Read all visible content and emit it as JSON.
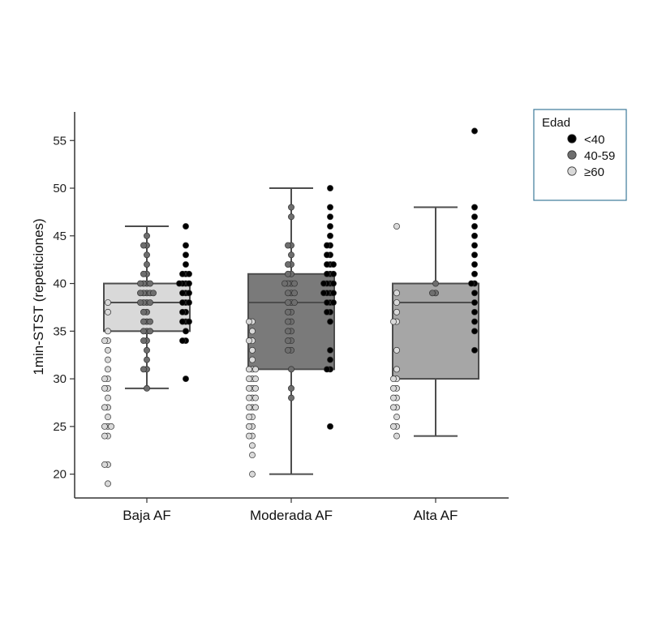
{
  "chart_data": {
    "type": "box",
    "title": "",
    "xlabel": "",
    "ylabel": "1min-STST (repeticiones)",
    "ylim": [
      17.5,
      58
    ],
    "yticks": [
      20,
      25,
      30,
      35,
      40,
      45,
      50,
      55
    ],
    "grid": false,
    "legend": {
      "title": "Edad",
      "placement": "top-right",
      "entries": [
        {
          "label": "<40",
          "color": "#000000"
        },
        {
          "label": "40-59",
          "color": "#6e6e6e"
        },
        {
          "label": "≥60",
          "color": "#d9d9d9"
        }
      ]
    },
    "categories": [
      "Baja AF",
      "Moderada AF",
      "Alta AF"
    ],
    "boxes": [
      {
        "category": "Baja AF",
        "q1": 35,
        "median": 38,
        "q3": 40,
        "whisker_low": 29,
        "whisker_high": 46,
        "fill": "#d9d9d9"
      },
      {
        "category": "Moderada AF",
        "q1": 31,
        "median": 38,
        "q3": 41,
        "whisker_low": 20,
        "whisker_high": 50,
        "fill": "#7a7a7a"
      },
      {
        "category": "Alta AF",
        "q1": 30,
        "median": 38,
        "q3": 40,
        "whisker_low": 24,
        "whisker_high": 48,
        "fill": "#a6a6a6"
      }
    ],
    "points": [
      {
        "category": "Baja AF",
        "group": "≥60",
        "values": [
          38,
          37,
          35,
          34,
          34,
          33,
          32,
          31,
          30,
          30,
          29,
          29,
          28,
          27,
          27,
          26,
          25,
          25,
          25,
          24,
          24,
          21,
          21,
          19
        ]
      },
      {
        "category": "Baja AF",
        "group": "40-59",
        "values": [
          45,
          44,
          44,
          43,
          42,
          41,
          41,
          40,
          40,
          40,
          40,
          39,
          39,
          39,
          39,
          39,
          38,
          38,
          38,
          38,
          37,
          37,
          36,
          36,
          36,
          35,
          35,
          35,
          34,
          34,
          33,
          32,
          31,
          31,
          29
        ]
      },
      {
        "category": "Baja AF",
        "group": "<40",
        "values": [
          46,
          44,
          43,
          42,
          41,
          41,
          41,
          40,
          40,
          40,
          40,
          39,
          39,
          39,
          38,
          38,
          38,
          37,
          37,
          36,
          36,
          36,
          35,
          34,
          34,
          30
        ]
      },
      {
        "category": "Moderada AF",
        "group": "≥60",
        "values": [
          36,
          36,
          35,
          34,
          34,
          33,
          32,
          31,
          31,
          31,
          30,
          30,
          30,
          29,
          29,
          29,
          28,
          28,
          28,
          27,
          27,
          27,
          26,
          26,
          25,
          25,
          24,
          24,
          23,
          22,
          20
        ]
      },
      {
        "category": "Moderada AF",
        "group": "40-59",
        "values": [
          48,
          47,
          44,
          44,
          43,
          42,
          42,
          41,
          41,
          40,
          40,
          40,
          40,
          39,
          39,
          39,
          38,
          38,
          38,
          37,
          37,
          36,
          36,
          35,
          35,
          34,
          34,
          33,
          33,
          31,
          29,
          28
        ]
      },
      {
        "category": "Moderada AF",
        "group": "<40",
        "values": [
          50,
          48,
          47,
          46,
          45,
          44,
          44,
          43,
          43,
          42,
          42,
          42,
          41,
          41,
          41,
          40,
          40,
          40,
          40,
          39,
          39,
          39,
          39,
          38,
          38,
          38,
          37,
          37,
          36,
          33,
          32,
          31,
          31,
          25
        ]
      },
      {
        "category": "Alta AF",
        "group": "≥60",
        "values": [
          46,
          39,
          38,
          37,
          36,
          36,
          33,
          31,
          30,
          30,
          29,
          29,
          28,
          28,
          27,
          27,
          26,
          25,
          25,
          24
        ]
      },
      {
        "category": "Alta AF",
        "group": "40-59",
        "values": [
          40,
          39,
          39
        ]
      },
      {
        "category": "Alta AF",
        "group": "<40",
        "values": [
          56,
          48,
          47,
          46,
          45,
          44,
          43,
          42,
          41,
          40,
          40,
          39,
          38,
          37,
          36,
          35,
          33
        ]
      }
    ]
  }
}
